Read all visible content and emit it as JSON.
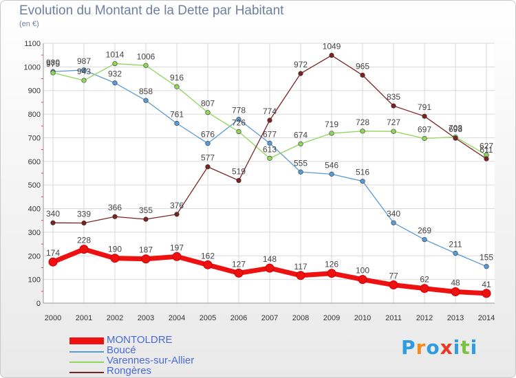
{
  "title": "Evolution du Montant de la Dette par Habitant",
  "subtitle": "(en €)",
  "logo": {
    "letters": [
      "P",
      "r",
      "o",
      "x",
      "i",
      "t",
      "i"
    ],
    "colors": [
      "#2f9be0",
      "#f28c1c",
      "#2f9be0",
      "#e8392a",
      "#2f9be0",
      "#7cc242",
      "#2f9be0"
    ]
  },
  "chart_data": {
    "type": "line",
    "x": [
      "2000",
      "2001",
      "2002",
      "2003",
      "2004",
      "2005",
      "2006",
      "2007",
      "2008",
      "2009",
      "2010",
      "2011",
      "2012",
      "2013",
      "2014"
    ],
    "ylim": [
      0,
      1100
    ],
    "yticks": [
      "0",
      "100",
      "200",
      "300",
      "400",
      "500",
      "600",
      "700",
      "800",
      "900",
      "1000",
      "1100"
    ],
    "grid": true,
    "legend_position": "bottom-left",
    "series": [
      {
        "name": "MONTOLDRE",
        "color": "#ee1111",
        "values": [
          174,
          228,
          190,
          187,
          197,
          162,
          127,
          148,
          117,
          126,
          100,
          77,
          62,
          48,
          41
        ]
      },
      {
        "name": "Boucé",
        "color": "#5b9bd5",
        "values": [
          980,
          987,
          932,
          858,
          761,
          676,
          778,
          677,
          555,
          546,
          516,
          340,
          269,
          211,
          155
        ]
      },
      {
        "name": "Varennes-sur-Allier",
        "color": "#8fd65a",
        "values": [
          975,
          943,
          1014,
          1006,
          916,
          807,
          726,
          613,
          674,
          719,
          728,
          727,
          697,
          703,
          627
        ]
      },
      {
        "name": "Rongères",
        "color": "#7b2222",
        "values": [
          340,
          339,
          366,
          355,
          376,
          577,
          519,
          774,
          972,
          1049,
          965,
          835,
          791,
          698,
          611
        ]
      }
    ],
    "data_labels": [
      [
        "174",
        "228",
        "190",
        "187",
        "197",
        "162",
        "127",
        "148",
        "117",
        "126",
        "100",
        "77",
        "62",
        "48",
        "41"
      ],
      [
        "980",
        "987",
        "932",
        "858",
        "761",
        "676",
        "778",
        "677",
        "555",
        "546",
        "516",
        "340",
        "269",
        "211",
        "155"
      ],
      [
        "975",
        "943",
        "1014",
        "1006",
        "916",
        "807",
        "726",
        "613",
        "674",
        "719",
        "728",
        "727",
        "697",
        "703",
        "627"
      ],
      [
        "340",
        "339",
        "366",
        "355",
        "376",
        "577",
        "519",
        "774",
        "972",
        "1049",
        "965",
        "835",
        "791",
        "698",
        "611"
      ]
    ]
  }
}
